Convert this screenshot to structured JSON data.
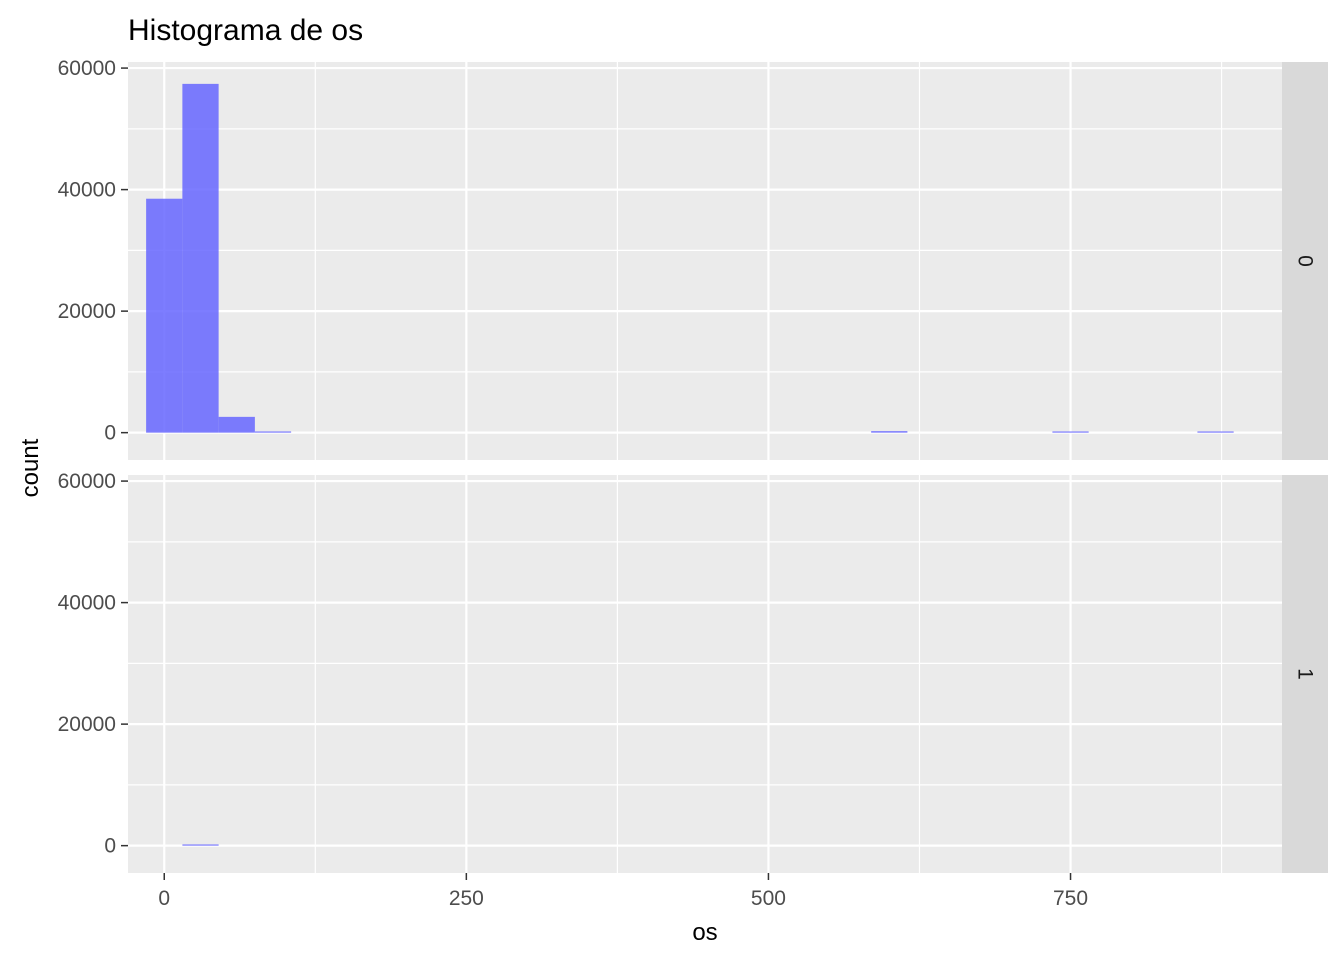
{
  "chart_data": {
    "type": "bar",
    "title": "Histograma de os",
    "xlabel": "os",
    "ylabel": "count",
    "xlim": [
      -30,
      925
    ],
    "ylim": [
      -4500,
      61000
    ],
    "x_ticks": [
      0,
      250,
      500,
      750
    ],
    "x_tick_labels": [
      "0",
      "250",
      "500",
      "750"
    ],
    "y_ticks": [
      0,
      20000,
      40000,
      60000
    ],
    "y_tick_labels": [
      "0",
      "20000",
      "40000",
      "60000"
    ],
    "bin_width": 30,
    "fill_color": "#6666ff",
    "grid": true,
    "facets": [
      {
        "label": "0",
        "bins": [
          {
            "x": 0,
            "count": 38500
          },
          {
            "x": 30,
            "count": 57400
          },
          {
            "x": 60,
            "count": 2600
          },
          {
            "x": 90,
            "count": 150
          },
          {
            "x": 600,
            "count": 250
          },
          {
            "x": 750,
            "count": 100
          },
          {
            "x": 870,
            "count": 100
          }
        ]
      },
      {
        "label": "1",
        "bins": [
          {
            "x": 30,
            "count": 120
          }
        ]
      }
    ]
  }
}
